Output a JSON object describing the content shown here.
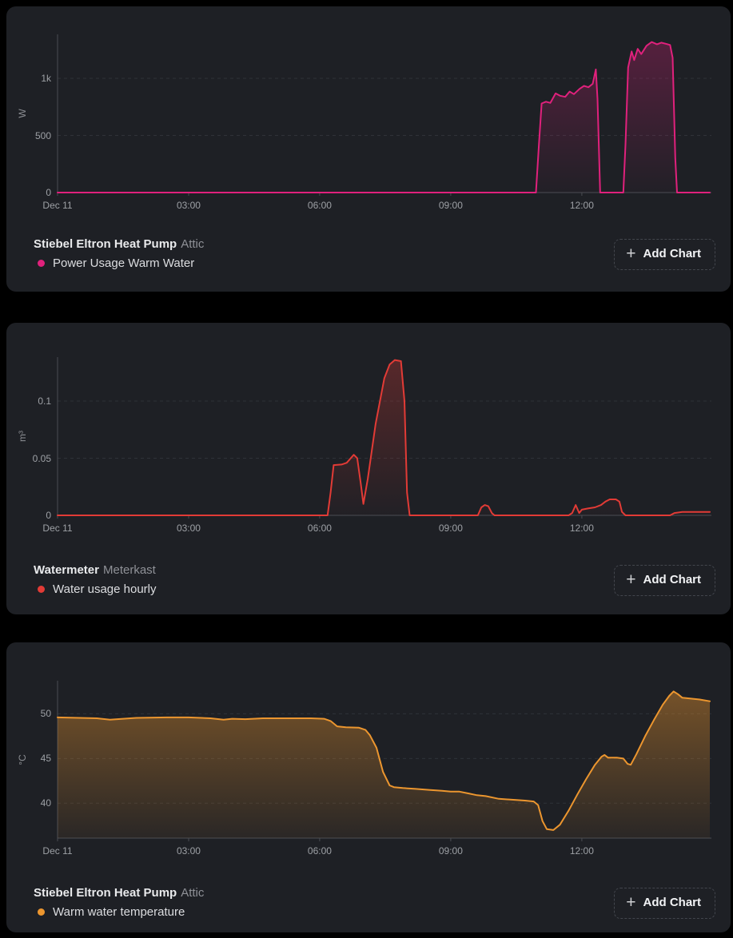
{
  "page": {
    "background": "#000000",
    "panel_background": "#1e2025"
  },
  "panels": [
    {
      "title": "Stiebel Eltron Heat Pump",
      "subtitle": "Attic",
      "legend_label": "Power Usage Warm Water",
      "legend_color": "#e0217c",
      "plus_icon": "+",
      "add_chart_label": "Add Chart"
    },
    {
      "title": "Watermeter",
      "subtitle": "Meterkast",
      "legend_label": "Water usage hourly",
      "legend_color": "#e23b36",
      "plus_icon": "+",
      "add_chart_label": "Add Chart"
    },
    {
      "title": "Stiebel Eltron Heat Pump",
      "subtitle": "Attic",
      "legend_label": "Warm water temperature",
      "legend_color": "#ec962f",
      "plus_icon": "+",
      "add_chart_label": "Add Chart"
    }
  ],
  "chart_data": [
    {
      "type": "area",
      "title": "Power Usage Warm Water",
      "ylabel": "W",
      "color": "#e0217c",
      "x_axis_note": "hours since Dec 11 00:00",
      "xlim": [
        0,
        14.93
      ],
      "ylim": [
        0,
        1385
      ],
      "grid": true,
      "x_ticks": [
        {
          "value": 0,
          "label": "Dec 11"
        },
        {
          "value": 3,
          "label": "03:00"
        },
        {
          "value": 6,
          "label": "06:00"
        },
        {
          "value": 9,
          "label": "09:00"
        },
        {
          "value": 12,
          "label": "12:00"
        }
      ],
      "y_ticks": [
        {
          "value": 0,
          "label": "0"
        },
        {
          "value": 500,
          "label": "500"
        },
        {
          "value": 1000,
          "label": "1k"
        }
      ],
      "points": [
        [
          0,
          0
        ],
        [
          10.95,
          0
        ],
        [
          11.02,
          430
        ],
        [
          11.08,
          780
        ],
        [
          11.18,
          795
        ],
        [
          11.28,
          785
        ],
        [
          11.4,
          868
        ],
        [
          11.5,
          848
        ],
        [
          11.62,
          838
        ],
        [
          11.72,
          884
        ],
        [
          11.82,
          862
        ],
        [
          11.95,
          908
        ],
        [
          12.05,
          934
        ],
        [
          12.15,
          922
        ],
        [
          12.25,
          952
        ],
        [
          12.32,
          1078
        ],
        [
          12.36,
          820
        ],
        [
          12.42,
          0
        ],
        [
          12.95,
          0
        ],
        [
          13.0,
          420
        ],
        [
          13.06,
          1095
        ],
        [
          13.14,
          1235
        ],
        [
          13.2,
          1160
        ],
        [
          13.28,
          1258
        ],
        [
          13.36,
          1212
        ],
        [
          13.48,
          1285
        ],
        [
          13.6,
          1318
        ],
        [
          13.72,
          1298
        ],
        [
          13.82,
          1312
        ],
        [
          13.95,
          1300
        ],
        [
          14.02,
          1292
        ],
        [
          14.08,
          1180
        ],
        [
          14.14,
          300
        ],
        [
          14.18,
          0
        ],
        [
          14.93,
          0
        ]
      ]
    },
    {
      "type": "area",
      "title": "Water usage hourly",
      "ylabel": "m³",
      "color": "#e23b36",
      "x_axis_note": "hours since Dec 11 00:00",
      "xlim": [
        0,
        14.93
      ],
      "ylim": [
        0,
        0.1385
      ],
      "grid": true,
      "x_ticks": [
        {
          "value": 0,
          "label": "Dec 11"
        },
        {
          "value": 3,
          "label": "03:00"
        },
        {
          "value": 6,
          "label": "06:00"
        },
        {
          "value": 9,
          "label": "09:00"
        },
        {
          "value": 12,
          "label": "12:00"
        }
      ],
      "y_ticks": [
        {
          "value": 0,
          "label": "0"
        },
        {
          "value": 0.05,
          "label": "0.05"
        },
        {
          "value": 0.1,
          "label": "0.1"
        }
      ],
      "points": [
        [
          0,
          0
        ],
        [
          6.18,
          0
        ],
        [
          6.25,
          0.02
        ],
        [
          6.32,
          0.044
        ],
        [
          6.5,
          0.0445
        ],
        [
          6.62,
          0.046
        ],
        [
          6.78,
          0.053
        ],
        [
          6.86,
          0.05
        ],
        [
          6.94,
          0.028
        ],
        [
          7.0,
          0.01
        ],
        [
          7.1,
          0.032
        ],
        [
          7.28,
          0.08
        ],
        [
          7.48,
          0.12
        ],
        [
          7.6,
          0.132
        ],
        [
          7.72,
          0.136
        ],
        [
          7.86,
          0.135
        ],
        [
          7.94,
          0.1
        ],
        [
          8.0,
          0.02
        ],
        [
          8.06,
          0
        ],
        [
          9.62,
          0
        ],
        [
          9.7,
          0.007
        ],
        [
          9.78,
          0.009
        ],
        [
          9.86,
          0.008
        ],
        [
          9.94,
          0.002
        ],
        [
          10.0,
          0
        ],
        [
          11.7,
          0
        ],
        [
          11.78,
          0.002
        ],
        [
          11.86,
          0.009
        ],
        [
          11.94,
          0.002
        ],
        [
          12.0,
          0.005
        ],
        [
          12.14,
          0.006
        ],
        [
          12.3,
          0.007
        ],
        [
          12.44,
          0.009
        ],
        [
          12.54,
          0.012
        ],
        [
          12.64,
          0.014
        ],
        [
          12.78,
          0.014
        ],
        [
          12.86,
          0.012
        ],
        [
          12.92,
          0.003
        ],
        [
          13.0,
          0
        ],
        [
          14.02,
          0
        ],
        [
          14.12,
          0.002
        ],
        [
          14.3,
          0.003
        ],
        [
          14.93,
          0.003
        ]
      ]
    },
    {
      "type": "area",
      "title": "Warm water temperature",
      "ylabel": "°C",
      "color": "#ec962f",
      "x_axis_note": "hours since Dec 11 00:00",
      "xlim": [
        0,
        14.93
      ],
      "ylim": [
        36.1,
        53.7
      ],
      "grid": true,
      "x_ticks": [
        {
          "value": 0,
          "label": "Dec 11"
        },
        {
          "value": 3,
          "label": "03:00"
        },
        {
          "value": 6,
          "label": "06:00"
        },
        {
          "value": 9,
          "label": "09:00"
        },
        {
          "value": 12,
          "label": "12:00"
        }
      ],
      "y_ticks": [
        {
          "value": 40,
          "label": "40"
        },
        {
          "value": 45,
          "label": "45"
        },
        {
          "value": 50,
          "label": "50"
        }
      ],
      "points": [
        [
          0,
          49.6
        ],
        [
          0.5,
          49.55
        ],
        [
          0.9,
          49.5
        ],
        [
          1.2,
          49.35
        ],
        [
          1.5,
          49.45
        ],
        [
          1.8,
          49.55
        ],
        [
          2.5,
          49.6
        ],
        [
          3.0,
          49.6
        ],
        [
          3.5,
          49.5
        ],
        [
          3.8,
          49.35
        ],
        [
          4.0,
          49.45
        ],
        [
          4.3,
          49.4
        ],
        [
          4.7,
          49.5
        ],
        [
          5.2,
          49.5
        ],
        [
          5.8,
          49.5
        ],
        [
          6.1,
          49.45
        ],
        [
          6.25,
          49.2
        ],
        [
          6.4,
          48.6
        ],
        [
          6.6,
          48.5
        ],
        [
          6.9,
          48.45
        ],
        [
          7.05,
          48.2
        ],
        [
          7.15,
          47.6
        ],
        [
          7.3,
          46.2
        ],
        [
          7.45,
          43.5
        ],
        [
          7.6,
          42.0
        ],
        [
          7.7,
          41.8
        ],
        [
          7.9,
          41.7
        ],
        [
          8.2,
          41.6
        ],
        [
          8.5,
          41.5
        ],
        [
          8.8,
          41.4
        ],
        [
          9.0,
          41.3
        ],
        [
          9.2,
          41.3
        ],
        [
          9.4,
          41.1
        ],
        [
          9.6,
          40.9
        ],
        [
          9.8,
          40.8
        ],
        [
          10.1,
          40.5
        ],
        [
          10.4,
          40.4
        ],
        [
          10.7,
          40.3
        ],
        [
          10.9,
          40.2
        ],
        [
          11.0,
          39.8
        ],
        [
          11.1,
          38.0
        ],
        [
          11.2,
          37.1
        ],
        [
          11.35,
          37.0
        ],
        [
          11.5,
          37.6
        ],
        [
          11.7,
          39.2
        ],
        [
          11.9,
          41.0
        ],
        [
          12.1,
          42.7
        ],
        [
          12.3,
          44.3
        ],
        [
          12.45,
          45.2
        ],
        [
          12.52,
          45.4
        ],
        [
          12.6,
          45.1
        ],
        [
          12.8,
          45.1
        ],
        [
          12.95,
          45.0
        ],
        [
          13.05,
          44.4
        ],
        [
          13.12,
          44.3
        ],
        [
          13.25,
          45.5
        ],
        [
          13.45,
          47.5
        ],
        [
          13.65,
          49.3
        ],
        [
          13.85,
          51.0
        ],
        [
          14.0,
          52.0
        ],
        [
          14.1,
          52.5
        ],
        [
          14.2,
          52.2
        ],
        [
          14.3,
          51.8
        ],
        [
          14.5,
          51.7
        ],
        [
          14.7,
          51.6
        ],
        [
          14.93,
          51.4
        ]
      ]
    }
  ]
}
